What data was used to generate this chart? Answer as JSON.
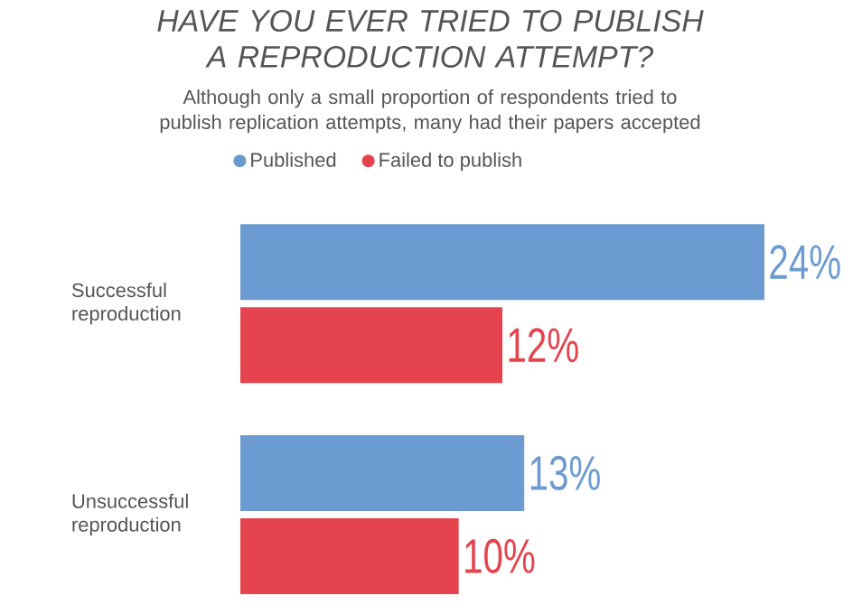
{
  "chart_data": {
    "type": "bar",
    "orientation": "horizontal",
    "title": "HAVE YOU EVER TRIED TO PUBLISH A REPRODUCTION ATTEMPT?",
    "subtitle": "Although only a small proportion of respondents tried to publish replication attempts, many had their papers accepted",
    "categories": [
      "Successful reproduction",
      "Unsuccessful reproduction"
    ],
    "series": [
      {
        "name": "Published",
        "color": "#6c9bd2",
        "values": [
          24,
          13
        ],
        "value_labels": [
          "24%",
          "13%"
        ]
      },
      {
        "name": "Failed to publish",
        "color": "#e5444e",
        "values": [
          12,
          10
        ],
        "value_labels": [
          "12%",
          "10%"
        ]
      }
    ],
    "legend": "top left"
  }
}
